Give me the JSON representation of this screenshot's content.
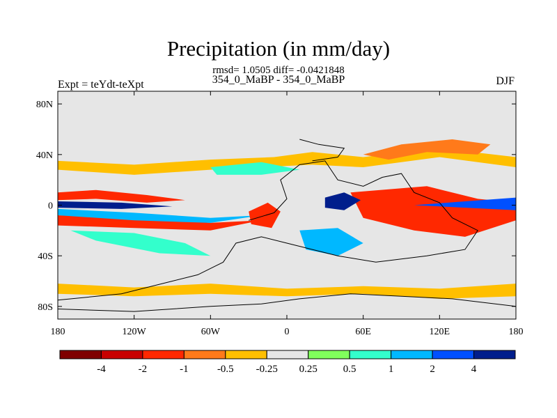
{
  "chart_data": {
    "type": "heatmap",
    "title": "Precipitation (in mm/day)",
    "stats_text": "rmsd= 1.0505 diff= -0.0421848",
    "left_label": "Expt = teYdt-teXpt",
    "center_label": "354_0_MaBP - 354_0_MaBP",
    "right_label": "DJF",
    "x_ticks": [
      {
        "value": -180,
        "label": "180"
      },
      {
        "value": -120,
        "label": "120W"
      },
      {
        "value": -60,
        "label": "60W"
      },
      {
        "value": 0,
        "label": "0"
      },
      {
        "value": 60,
        "label": "60E"
      },
      {
        "value": 120,
        "label": "120E"
      },
      {
        "value": 180,
        "label": "180"
      }
    ],
    "y_ticks": [
      {
        "value": 80,
        "label": "80N"
      },
      {
        "value": 40,
        "label": "40N"
      },
      {
        "value": 0,
        "label": "0"
      },
      {
        "value": -40,
        "label": "40S"
      },
      {
        "value": -80,
        "label": "80S"
      }
    ],
    "xlim": [
      -180,
      180
    ],
    "ylim": [
      -90,
      90
    ],
    "colorbar": {
      "colors": [
        "#7f0000",
        "#c80000",
        "#ff2800",
        "#ff7a1a",
        "#ffbf00",
        "#e6e6e6",
        "#80ff5c",
        "#33ffcc",
        "#00b8ff",
        "#0050ff",
        "#001e8c"
      ],
      "labels": [
        "-4",
        "-2",
        "-1",
        "-0.5",
        "-0.25",
        "0.25",
        "0.5",
        "1",
        "2",
        "4"
      ]
    },
    "regions": [
      {
        "name": "nh-dry-band",
        "level": -0.5,
        "points": [
          [
            -180,
            35
          ],
          [
            -120,
            32
          ],
          [
            -60,
            36
          ],
          [
            -10,
            38
          ],
          [
            20,
            42
          ],
          [
            60,
            38
          ],
          [
            120,
            45
          ],
          [
            180,
            38
          ],
          [
            180,
            30
          ],
          [
            120,
            38
          ],
          [
            60,
            30
          ],
          [
            20,
            32
          ],
          [
            -60,
            28
          ],
          [
            -120,
            24
          ],
          [
            -180,
            28
          ]
        ]
      },
      {
        "name": "np-east-dry",
        "level": -1,
        "points": [
          [
            60,
            40
          ],
          [
            90,
            48
          ],
          [
            130,
            52
          ],
          [
            160,
            48
          ],
          [
            150,
            40
          ],
          [
            110,
            42
          ],
          [
            80,
            36
          ]
        ]
      },
      {
        "name": "eq-north-dry",
        "level": -2,
        "points": [
          [
            -180,
            10
          ],
          [
            -150,
            12
          ],
          [
            -110,
            8
          ],
          [
            -80,
            4
          ],
          [
            -110,
            2
          ],
          [
            -150,
            5
          ],
          [
            -180,
            4
          ]
        ]
      },
      {
        "name": "eq-south-dry",
        "level": -2,
        "points": [
          [
            -180,
            -8
          ],
          [
            -120,
            -10
          ],
          [
            -60,
            -14
          ],
          [
            -20,
            -12
          ],
          [
            -60,
            -20
          ],
          [
            -120,
            -18
          ],
          [
            -180,
            -16
          ]
        ]
      },
      {
        "name": "eq-wet-core",
        "level": 4,
        "points": [
          [
            -180,
            3
          ],
          [
            -130,
            2
          ],
          [
            -90,
            -1
          ],
          [
            -130,
            -3
          ],
          [
            -180,
            -2
          ]
        ]
      },
      {
        "name": "eq-wet-band",
        "level": 1,
        "points": [
          [
            -180,
            -3
          ],
          [
            -120,
            -6
          ],
          [
            -60,
            -10
          ],
          [
            -20,
            -8
          ],
          [
            -60,
            -14
          ],
          [
            -120,
            -12
          ],
          [
            -180,
            -8
          ]
        ]
      },
      {
        "name": "sp-moist",
        "level": 0.5,
        "points": [
          [
            -170,
            -20
          ],
          [
            -120,
            -22
          ],
          [
            -80,
            -30
          ],
          [
            -60,
            -40
          ],
          [
            -100,
            -38
          ],
          [
            -150,
            -28
          ]
        ]
      },
      {
        "name": "atlantic-dry",
        "level": -2,
        "points": [
          [
            -30,
            -5
          ],
          [
            -15,
            2
          ],
          [
            -5,
            -5
          ],
          [
            -12,
            -18
          ],
          [
            -28,
            -15
          ]
        ]
      },
      {
        "name": "indian-dry-core",
        "level": -4,
        "points": [
          [
            60,
            5
          ],
          [
            90,
            10
          ],
          [
            110,
            2
          ],
          [
            95,
            -10
          ],
          [
            65,
            -8
          ]
        ]
      },
      {
        "name": "indian-dry",
        "level": -2,
        "points": [
          [
            50,
            10
          ],
          [
            110,
            15
          ],
          [
            150,
            5
          ],
          [
            180,
            2
          ],
          [
            180,
            -12
          ],
          [
            140,
            -25
          ],
          [
            100,
            -20
          ],
          [
            60,
            -10
          ]
        ]
      },
      {
        "name": "africa-wet",
        "level": 4,
        "points": [
          [
            30,
            6
          ],
          [
            45,
            10
          ],
          [
            58,
            4
          ],
          [
            45,
            -4
          ],
          [
            30,
            -2
          ]
        ]
      },
      {
        "name": "pacific-east-wet",
        "level": 2,
        "points": [
          [
            100,
            0
          ],
          [
            140,
            3
          ],
          [
            180,
            6
          ],
          [
            180,
            -4
          ],
          [
            140,
            -2
          ]
        ]
      },
      {
        "name": "s-africa-moist",
        "level": 1,
        "points": [
          [
            10,
            -20
          ],
          [
            40,
            -18
          ],
          [
            60,
            -30
          ],
          [
            40,
            -40
          ],
          [
            15,
            -35
          ]
        ]
      },
      {
        "name": "southern-dry",
        "level": -0.5,
        "points": [
          [
            -180,
            -62
          ],
          [
            -120,
            -65
          ],
          [
            -60,
            -62
          ],
          [
            0,
            -66
          ],
          [
            60,
            -64
          ],
          [
            120,
            -66
          ],
          [
            180,
            -62
          ],
          [
            180,
            -72
          ],
          [
            120,
            -74
          ],
          [
            60,
            -70
          ],
          [
            0,
            -72
          ],
          [
            -60,
            -70
          ],
          [
            -120,
            -72
          ],
          [
            -180,
            -70
          ]
        ]
      },
      {
        "name": "nh-midlat-moist",
        "level": 0.5,
        "points": [
          [
            -60,
            30
          ],
          [
            -20,
            34
          ],
          [
            10,
            28
          ],
          [
            -20,
            24
          ],
          [
            -55,
            24
          ]
        ]
      }
    ],
    "coastlines": [
      [
        [
          -30,
          -12
        ],
        [
          -10,
          -6
        ],
        [
          0,
          5
        ],
        [
          -5,
          20
        ],
        [
          10,
          32
        ],
        [
          30,
          35
        ],
        [
          40,
          20
        ],
        [
          60,
          15
        ],
        [
          75,
          22
        ],
        [
          90,
          25
        ],
        [
          100,
          10
        ],
        [
          120,
          2
        ],
        [
          130,
          -10
        ],
        [
          150,
          -20
        ],
        [
          140,
          -35
        ],
        [
          110,
          -40
        ],
        [
          70,
          -45
        ],
        [
          40,
          -40
        ],
        [
          20,
          -35
        ],
        [
          0,
          -30
        ],
        [
          -20,
          -25
        ],
        [
          -40,
          -30
        ],
        [
          -50,
          -45
        ],
        [
          -70,
          -55
        ],
        [
          -90,
          -60
        ],
        [
          -130,
          -70
        ],
        [
          -180,
          -75
        ]
      ],
      [
        [
          -180,
          -82
        ],
        [
          -120,
          -84
        ],
        [
          -60,
          -80
        ],
        [
          -20,
          -78
        ],
        [
          10,
          -74
        ],
        [
          50,
          -70
        ],
        [
          90,
          -72
        ],
        [
          130,
          -74
        ],
        [
          180,
          -80
        ]
      ],
      [
        [
          10,
          52
        ],
        [
          25,
          48
        ],
        [
          45,
          45
        ],
        [
          40,
          38
        ],
        [
          20,
          35
        ]
      ]
    ]
  }
}
